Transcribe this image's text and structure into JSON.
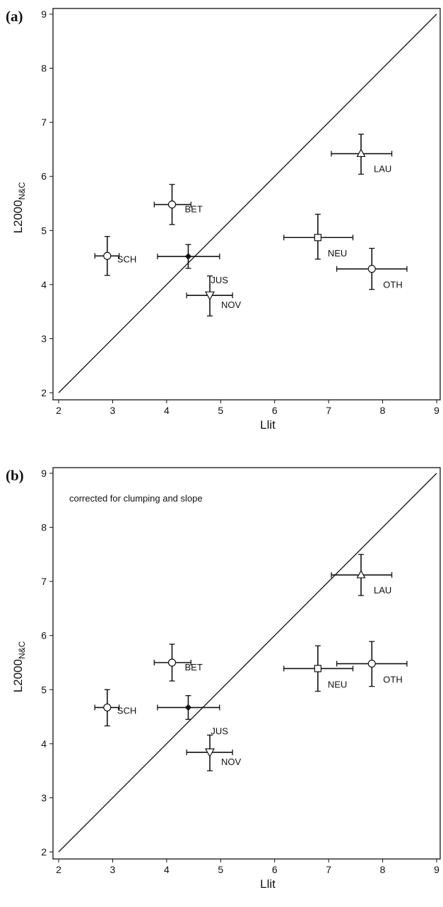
{
  "chart_data": [
    {
      "type": "scatter",
      "panel_label": "(a)",
      "title": "",
      "annotation": "",
      "xlabel": "Llit",
      "ylabel": {
        "main": "L2000",
        "subscript": "N&C"
      },
      "xlim": [
        2,
        9
      ],
      "ylim": [
        2,
        9
      ],
      "xticks": [
        2,
        3,
        4,
        5,
        6,
        7,
        8,
        9
      ],
      "yticks": [
        2,
        3,
        4,
        5,
        6,
        7,
        8,
        9
      ],
      "grid": false,
      "reference_line": {
        "x": [
          2,
          9
        ],
        "y": [
          2,
          9
        ]
      },
      "points": [
        {
          "label": "SCH",
          "marker": "circle",
          "x": 2.9,
          "y": 4.53,
          "xerr": [
            2.67,
            3.12
          ],
          "yerr": [
            4.17,
            4.89
          ]
        },
        {
          "label": "BET",
          "marker": "circle",
          "x": 4.1,
          "y": 5.48,
          "xerr": [
            3.77,
            4.45
          ],
          "yerr": [
            5.11,
            5.85
          ]
        },
        {
          "label": "JUS",
          "marker": "diamond",
          "x": 4.4,
          "y": 4.52,
          "xerr": [
            3.83,
            4.98
          ],
          "yerr": [
            4.3,
            4.74
          ]
        },
        {
          "label": "NOV",
          "marker": "triangle-down",
          "x": 4.8,
          "y": 3.8,
          "xerr": [
            4.37,
            5.22
          ],
          "yerr": [
            3.42,
            4.16
          ]
        },
        {
          "label": "NEU",
          "marker": "square",
          "x": 6.8,
          "y": 4.87,
          "xerr": [
            6.17,
            7.45
          ],
          "yerr": [
            4.47,
            5.3
          ]
        },
        {
          "label": "LAU",
          "marker": "triangle-up",
          "x": 7.6,
          "y": 6.42,
          "xerr": [
            7.05,
            8.17
          ],
          "yerr": [
            6.04,
            6.78
          ]
        },
        {
          "label": "OTH",
          "marker": "circle",
          "x": 7.8,
          "y": 4.29,
          "xerr": [
            7.15,
            8.45
          ],
          "yerr": [
            3.91,
            4.67
          ]
        }
      ]
    },
    {
      "type": "scatter",
      "panel_label": "(b)",
      "title": "",
      "annotation": "corrected for clumping and slope",
      "xlabel": "Llit",
      "ylabel": {
        "main": "L2000",
        "subscript": "N&C"
      },
      "xlim": [
        2,
        9
      ],
      "ylim": [
        2,
        9
      ],
      "xticks": [
        2,
        3,
        4,
        5,
        6,
        7,
        8,
        9
      ],
      "yticks": [
        2,
        3,
        4,
        5,
        6,
        7,
        8,
        9
      ],
      "grid": false,
      "reference_line": {
        "x": [
          2,
          9
        ],
        "y": [
          2,
          9
        ]
      },
      "points": [
        {
          "label": "SCH",
          "marker": "circle",
          "x": 2.9,
          "y": 4.67,
          "xerr": [
            2.67,
            3.12
          ],
          "yerr": [
            4.33,
            5.0
          ]
        },
        {
          "label": "BET",
          "marker": "circle",
          "x": 4.1,
          "y": 5.5,
          "xerr": [
            3.77,
            4.45
          ],
          "yerr": [
            5.16,
            5.84
          ]
        },
        {
          "label": "JUS",
          "marker": "diamond",
          "x": 4.4,
          "y": 4.67,
          "xerr": [
            3.83,
            4.98
          ],
          "yerr": [
            4.45,
            4.89
          ]
        },
        {
          "label": "NOV",
          "marker": "triangle-down",
          "x": 4.8,
          "y": 3.84,
          "xerr": [
            4.37,
            5.22
          ],
          "yerr": [
            3.5,
            4.16
          ]
        },
        {
          "label": "NEU",
          "marker": "square",
          "x": 6.8,
          "y": 5.39,
          "xerr": [
            6.17,
            7.45
          ],
          "yerr": [
            4.97,
            5.81
          ]
        },
        {
          "label": "LAU",
          "marker": "triangle-up",
          "x": 7.6,
          "y": 7.12,
          "xerr": [
            7.05,
            8.17
          ],
          "yerr": [
            6.74,
            7.5
          ]
        },
        {
          "label": "OTH",
          "marker": "circle",
          "x": 7.8,
          "y": 5.48,
          "xerr": [
            7.15,
            8.45
          ],
          "yerr": [
            5.06,
            5.89
          ]
        }
      ]
    }
  ]
}
